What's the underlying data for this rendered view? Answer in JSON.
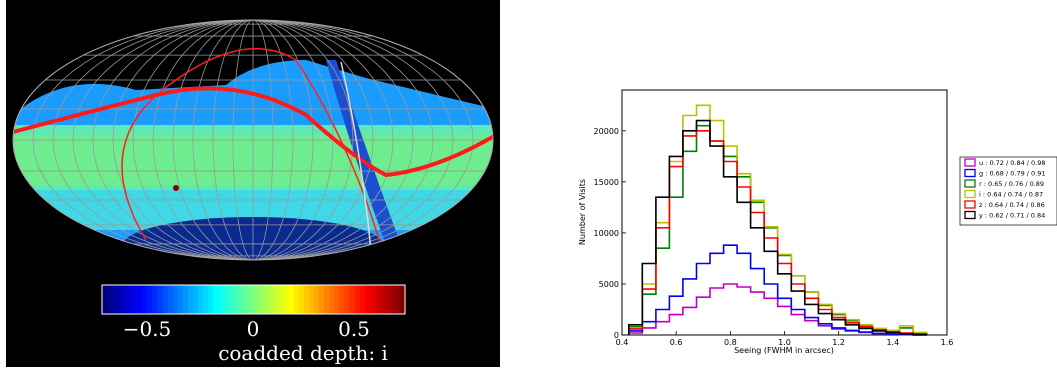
{
  "skymap": {
    "colorbar_ticks": [
      "−0.5",
      "0",
      "0.5"
    ],
    "colorbar_title": "coadded depth: i",
    "colormap": [
      "#00007f",
      "#0000ff",
      "#007fff",
      "#00ffff",
      "#7fff7f",
      "#ffff00",
      "#ff7f00",
      "#ff0000",
      "#7f0000"
    ],
    "range": [
      -0.75,
      0.75
    ]
  },
  "chart_data": {
    "type": "histogram",
    "xlabel": "Seeing (FWHM in arcsec)",
    "ylabel": "Number of Visits",
    "xlim": [
      0.4,
      1.6
    ],
    "ylim": [
      0,
      24000
    ],
    "xticks": [
      "0.4",
      "0.6",
      "0.8",
      "1.0",
      "1.2",
      "1.4",
      "1.6"
    ],
    "yticks": [
      "0",
      "5000",
      "10000",
      "15000",
      "20000"
    ],
    "legend_position": "outside-right",
    "series": [
      {
        "name": "u : 0.72 / 0.84 / 0.98",
        "color": "#bf00bf",
        "x": [
          0.45,
          0.5,
          0.55,
          0.6,
          0.65,
          0.7,
          0.75,
          0.8,
          0.85,
          0.9,
          0.95,
          1.0,
          1.05,
          1.1,
          1.15,
          1.2,
          1.25,
          1.3,
          1.35,
          1.4,
          1.45,
          1.5
        ],
        "y": [
          200,
          700,
          1300,
          2000,
          2700,
          3700,
          4600,
          5000,
          4700,
          4200,
          3600,
          2800,
          2000,
          1400,
          900,
          600,
          400,
          250,
          150,
          80,
          40,
          10
        ]
      },
      {
        "name": "g : 0.68 / 0.79 / 0.91",
        "color": "#0000ff",
        "x": [
          0.45,
          0.5,
          0.55,
          0.6,
          0.65,
          0.7,
          0.75,
          0.8,
          0.85,
          0.9,
          0.95,
          1.0,
          1.05,
          1.1,
          1.15,
          1.2,
          1.25,
          1.3,
          1.35,
          1.4,
          1.45,
          1.5
        ],
        "y": [
          400,
          1300,
          2500,
          3800,
          5500,
          7000,
          8000,
          8800,
          8000,
          6500,
          5000,
          3600,
          2500,
          1700,
          1100,
          700,
          450,
          280,
          160,
          90,
          50,
          10
        ]
      },
      {
        "name": "r : 0.65 / 0.76 / 0.89",
        "color": "#007f00",
        "x": [
          0.45,
          0.5,
          0.55,
          0.6,
          0.65,
          0.7,
          0.75,
          0.8,
          0.85,
          0.9,
          0.95,
          1.0,
          1.05,
          1.1,
          1.15,
          1.2,
          1.25,
          1.3,
          1.35,
          1.4,
          1.45,
          1.5
        ],
        "y": [
          800,
          4000,
          8500,
          13500,
          18000,
          20500,
          19000,
          17500,
          15500,
          13000,
          10500,
          7800,
          5800,
          4200,
          2900,
          2000,
          1400,
          900,
          600,
          400,
          700,
          200
        ]
      },
      {
        "name": "i : 0.64 / 0.74 / 0.87",
        "color": "#bfbf00",
        "x": [
          0.45,
          0.5,
          0.55,
          0.6,
          0.65,
          0.7,
          0.75,
          0.8,
          0.85,
          0.9,
          0.95,
          1.0,
          1.05,
          1.1,
          1.15,
          1.2,
          1.25,
          1.3,
          1.35,
          1.4,
          1.45,
          1.5
        ],
        "y": [
          700,
          5000,
          11000,
          17000,
          21500,
          22500,
          21000,
          18500,
          15800,
          13200,
          10600,
          7900,
          5800,
          4200,
          3000,
          2100,
          1500,
          1000,
          650,
          450,
          900,
          250
        ]
      },
      {
        "name": "z : 0.64 / 0.74 / 0.86",
        "color": "#ff0000",
        "x": [
          0.45,
          0.5,
          0.55,
          0.6,
          0.65,
          0.7,
          0.75,
          0.8,
          0.85,
          0.9,
          0.95,
          1.0,
          1.05,
          1.1,
          1.15,
          1.2,
          1.25,
          1.3,
          1.35,
          1.4,
          1.45,
          1.5
        ],
        "y": [
          600,
          4500,
          10500,
          16500,
          19500,
          20000,
          19000,
          17000,
          14500,
          12000,
          9500,
          7000,
          5000,
          3600,
          2500,
          1700,
          1200,
          800,
          500,
          300,
          200,
          100
        ]
      },
      {
        "name": "y : 0.62 / 0.71 / 0.84",
        "color": "#000000",
        "x": [
          0.45,
          0.5,
          0.55,
          0.6,
          0.65,
          0.7,
          0.75,
          0.8,
          0.85,
          0.9,
          0.95,
          1.0,
          1.05,
          1.1,
          1.15,
          1.2,
          1.25,
          1.3,
          1.35,
          1.4,
          1.45,
          1.5
        ],
        "y": [
          1000,
          7000,
          13500,
          17500,
          20000,
          21000,
          18500,
          15500,
          13000,
          10500,
          8200,
          6000,
          4300,
          3000,
          2100,
          1500,
          1000,
          650,
          400,
          250,
          120,
          50
        ]
      }
    ]
  }
}
